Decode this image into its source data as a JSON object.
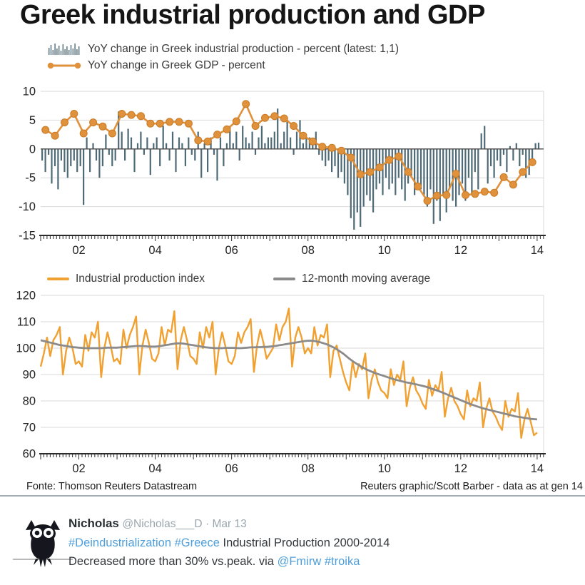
{
  "title": "Greek industrial production and GDP",
  "colors": {
    "bar": "#4e6a77",
    "gdp_line": "#e0913c",
    "gdp_marker_stroke": "#c97b26",
    "index_line": "#f0a132",
    "ma_line": "#8b8b8b",
    "grid": "#d9d9d9",
    "zero_line": "#4a4a4a",
    "axis": "#2b2b2b",
    "label": "#222222",
    "link_blue": "#4f9fdb"
  },
  "footer": {
    "source": "Fonte: Thomson Reuters Datastream",
    "credit": "Reuters graphic/Scott Barber - data as at gen 14"
  },
  "tweet": {
    "name": "Nicholas",
    "handle": "@Nicholas___D",
    "date": "· Mar 13",
    "hashtag1": "#Deindustrialization",
    "hashtag2": "#Greece",
    "text1": "Industrial Production 2000-2014",
    "text2": "Decreased more than 30% vs.peak. via",
    "mention": "@Fmirw",
    "hashtag3": "#troika"
  },
  "chart_data": [
    {
      "type": "bar",
      "panel": "top",
      "title": "YoY change in Greek industrial production and GDP",
      "ylim": [
        -15,
        10
      ],
      "y_ticks": [
        10,
        5,
        0,
        -5,
        -10,
        -15
      ],
      "x_range_years": [
        2001,
        2014.17
      ],
      "x_tick_years": [
        2002,
        2004,
        2006,
        2008,
        2010,
        2012,
        2014
      ],
      "x_tick_labels": [
        "02",
        "04",
        "06",
        "08",
        "10",
        "12",
        "14"
      ],
      "grid": true,
      "legend": [
        "YoY change in Greek industrial production - percent (latest: 1,1)",
        "YoY change in Greek GDP - percent"
      ],
      "series": [
        {
          "name": "YoY change in Greek industrial production - percent",
          "type": "bar",
          "freq": "monthly",
          "start_year": 2001.0,
          "latest": "1,1",
          "values": [
            -2,
            -4,
            -1,
            -6,
            -3,
            -7,
            -2,
            -4,
            -5,
            -3,
            -2,
            -4,
            -3,
            -9.7,
            2,
            -4,
            1,
            -2,
            -5,
            -3,
            2.5,
            -1,
            -3,
            -2,
            6.5,
            3,
            -2,
            3.5,
            2,
            -4,
            1,
            3,
            -1,
            2,
            -4.5,
            1,
            2,
            -3,
            4,
            1,
            -2,
            3,
            -4,
            2,
            1,
            -3,
            2,
            -1,
            -2,
            3,
            -5,
            1,
            -4,
            2,
            -1,
            -5.5,
            2,
            -3,
            1,
            4,
            1,
            3,
            -2,
            4,
            2,
            1,
            3,
            -1,
            2,
            4,
            1,
            2,
            2,
            3,
            7,
            1,
            3,
            5,
            2,
            -1,
            3,
            5,
            1,
            2,
            2,
            1,
            3,
            -1,
            -2,
            -3,
            -2,
            -4,
            -3,
            -5,
            -4,
            -6,
            -8,
            -12,
            -14,
            -11,
            -13.5,
            -10,
            -8,
            -9,
            -11,
            -7,
            -6,
            -8,
            -5,
            -7,
            -6,
            -8,
            -5,
            -7,
            -9,
            -6,
            -5,
            -8,
            -6,
            -7,
            -8,
            -10,
            -7,
            -13,
            -9,
            -12.5,
            -8,
            -11,
            -7,
            -9,
            -10,
            -8,
            -6,
            -9,
            -5,
            -8,
            -4,
            -7,
            2.7,
            4,
            -6,
            -3,
            -5,
            -2,
            -3,
            -1,
            -4,
            0.5,
            -2,
            1,
            -3,
            -1,
            -5,
            -4.5,
            -2,
            1,
            1.1
          ]
        },
        {
          "name": "YoY change in Greek GDP - percent",
          "type": "line",
          "marker": "circle",
          "freq": "quarterly",
          "start_year": 2001.125,
          "values": [
            3.3,
            2.3,
            4.6,
            6.1,
            2.7,
            4.6,
            3.9,
            2.7,
            6.1,
            5.9,
            5.7,
            4.4,
            4.4,
            4.7,
            4.7,
            4.4,
            1.5,
            1.3,
            2.5,
            3.4,
            4.8,
            7.8,
            4.0,
            5.4,
            5.7,
            5.3,
            4.0,
            2.3,
            1.3,
            0.4,
            0.2,
            -0.3,
            -1.5,
            -4.4,
            -4.0,
            -3.2,
            -1.9,
            -1.3,
            -4.0,
            -6.5,
            -9.0,
            -8.1,
            -8.0,
            -4.3,
            -8.0,
            -7.8,
            -7.4,
            -7.6,
            -4.9,
            -6.2,
            -4.0,
            -2.3
          ]
        }
      ]
    },
    {
      "type": "line",
      "panel": "bottom",
      "title": "Greek industrial production index and 12-month moving average",
      "ylim": [
        60,
        120
      ],
      "y_ticks": [
        120,
        110,
        100,
        90,
        80,
        70,
        60
      ],
      "x_range_years": [
        2001,
        2014.17
      ],
      "x_tick_years": [
        2002,
        2004,
        2006,
        2008,
        2010,
        2012,
        2014
      ],
      "x_tick_labels": [
        "02",
        "04",
        "06",
        "08",
        "10",
        "12",
        "14"
      ],
      "grid": true,
      "legend": [
        "Industrial production index",
        "12-month moving average"
      ],
      "series": [
        {
          "name": "Industrial production index",
          "type": "line",
          "freq": "monthly",
          "start_year": 2001.0,
          "values": [
            93,
            98,
            104,
            97,
            103,
            105,
            108,
            90,
            99,
            104,
            100,
            94,
            95,
            93,
            105,
            99,
            106,
            104,
            110,
            89,
            100,
            106,
            101,
            95,
            96,
            94,
            107,
            100,
            105,
            108,
            112,
            90,
            101,
            107,
            102,
            96,
            95,
            98,
            108,
            101,
            107,
            106,
            114,
            92,
            103,
            108,
            103,
            97,
            96,
            94,
            106,
            100,
            108,
            104,
            110,
            90,
            100,
            106,
            101,
            95,
            94,
            97,
            106,
            102,
            106,
            108,
            111,
            91,
            101,
            107,
            102,
            96,
            98,
            100,
            109,
            103,
            108,
            110,
            115,
            93,
            104,
            108,
            104,
            98,
            100,
            98,
            108,
            101,
            105,
            104,
            109,
            89,
            99,
            101,
            96,
            91,
            87,
            84,
            95,
            89,
            94,
            92,
            98,
            81,
            88,
            92,
            87,
            84,
            83,
            81,
            92,
            86,
            90,
            88,
            95,
            78,
            85,
            89,
            84,
            82,
            79,
            77,
            88,
            82,
            86,
            84,
            91,
            74,
            81,
            85,
            80,
            78,
            75,
            73,
            84,
            78,
            81,
            80,
            87,
            70,
            77,
            81,
            76,
            74,
            71,
            69,
            80,
            74,
            77,
            76,
            83,
            66,
            73,
            77,
            72,
            67,
            68
          ]
        },
        {
          "name": "12-month moving average",
          "type": "line",
          "freq": "monthly",
          "start_year": 2001.0,
          "values": [
            103.0,
            102.7,
            102.4,
            102.1,
            101.8,
            101.5,
            101.2,
            101.0,
            100.8,
            100.6,
            100.4,
            100.3,
            100.2,
            100.1,
            100.0,
            100.0,
            100.0,
            100.0,
            100.0,
            100.0,
            100.1,
            100.2,
            100.2,
            100.2,
            100.2,
            100.3,
            100.4,
            100.5,
            100.6,
            100.7,
            100.8,
            100.8,
            100.8,
            100.7,
            100.6,
            100.6,
            100.6,
            100.7,
            100.9,
            101.1,
            101.3,
            101.5,
            101.7,
            101.8,
            101.8,
            101.7,
            101.5,
            101.3,
            101.1,
            100.9,
            100.7,
            100.5,
            100.3,
            100.2,
            100.1,
            100.0,
            100.0,
            100.0,
            100.1,
            100.1,
            100.1,
            100.1,
            100.0,
            100.0,
            100.1,
            100.2,
            100.3,
            100.3,
            100.4,
            100.4,
            100.5,
            100.5,
            100.6,
            100.7,
            100.9,
            101.1,
            101.3,
            101.5,
            101.7,
            101.9,
            102.1,
            102.3,
            102.5,
            102.7,
            102.8,
            102.8,
            102.7,
            102.5,
            102.2,
            101.8,
            101.4,
            100.9,
            100.3,
            99.6,
            98.8,
            98.0,
            97.0,
            96.0,
            95.1,
            94.3,
            93.5,
            92.8,
            92.2,
            91.6,
            91.1,
            90.6,
            90.2,
            89.8,
            89.4,
            89.0,
            88.6,
            88.2,
            87.9,
            87.6,
            87.3,
            87.0,
            86.8,
            86.5,
            86.3,
            86.0,
            85.7,
            85.4,
            85.0,
            84.6,
            84.2,
            83.8,
            83.3,
            82.8,
            82.3,
            81.8,
            81.3,
            80.8,
            80.3,
            79.8,
            79.3,
            78.8,
            78.4,
            78.0,
            77.6,
            77.2,
            76.9,
            76.6,
            76.3,
            76.0,
            75.7,
            75.4,
            75.1,
            74.8,
            74.5,
            74.2,
            74.0,
            73.8,
            73.6,
            73.4,
            73.2,
            73.1,
            73.0
          ]
        }
      ]
    }
  ]
}
